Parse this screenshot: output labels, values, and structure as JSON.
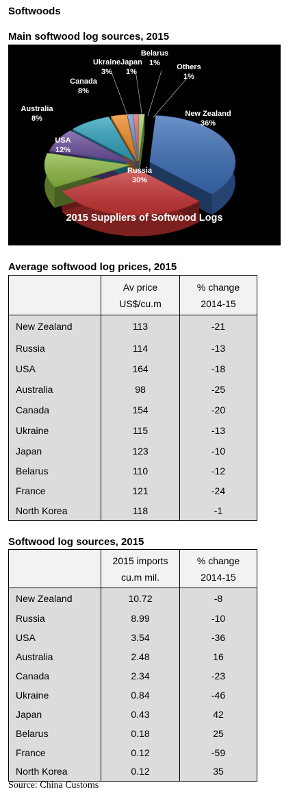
{
  "page_title": "Softwoods",
  "chart_heading": "Main softwood log sources, 2015",
  "chart_data": {
    "type": "pie",
    "title": "2015 Suppliers of Softwood Logs",
    "slices": [
      {
        "label": "New Zealand",
        "value": 36,
        "value_label": "36%",
        "color": "#3b6eb8"
      },
      {
        "label": "Russia",
        "value": 30,
        "value_label": "30%",
        "color": "#c83434"
      },
      {
        "label": "USA",
        "value": 12,
        "value_label": "12%",
        "color": "#8fbc45"
      },
      {
        "label": "Australia",
        "value": 8,
        "value_label": "8%",
        "color": "#6c4f9e"
      },
      {
        "label": "Canada",
        "value": 8,
        "value_label": "8%",
        "color": "#2fa3be"
      },
      {
        "label": "Ukraine",
        "value": 3,
        "value_label": "3%",
        "color": "#f08a24"
      },
      {
        "label": "Japan",
        "value": 1,
        "value_label": "1%",
        "color": "#6f95d6"
      },
      {
        "label": "Belarus",
        "value": 1,
        "value_label": "1%",
        "color": "#d46d6d"
      },
      {
        "label": "Others",
        "value": 1,
        "value_label": "1%",
        "color": "#a6cc6a"
      }
    ]
  },
  "prices_table": {
    "heading": "Average softwood log prices, 2015",
    "col2_line1": "Av price",
    "col2_line2": "US$/cu.m",
    "col3_line1": "% change",
    "col3_line2": "2014-15",
    "rows": [
      {
        "country": "New Zealand",
        "price": "113",
        "change": "-21"
      },
      {
        "country": "Russia",
        "price": "114",
        "change": "-13"
      },
      {
        "country": "USA",
        "price": "164",
        "change": "-18"
      },
      {
        "country": "Australia",
        "price": "98",
        "change": "-25"
      },
      {
        "country": "Canada",
        "price": "154",
        "change": "-20"
      },
      {
        "country": "Ukraine",
        "price": "115",
        "change": "-13"
      },
      {
        "country": "Japan",
        "price": "123",
        "change": "-10"
      },
      {
        "country": "Belarus",
        "price": "110",
        "change": "-12"
      },
      {
        "country": "France",
        "price": "121",
        "change": "-24"
      },
      {
        "country": "North Korea",
        "price": "118",
        "change": "-1"
      }
    ]
  },
  "sources_table": {
    "heading": "Softwood log sources, 2015",
    "col2_line1": "2015 imports",
    "col2_line2": "cu.m mil.",
    "col3_line1": "% change",
    "col3_line2": "2014-15",
    "rows": [
      {
        "country": "New Zealand",
        "imports": "10.72",
        "change": "-8"
      },
      {
        "country": "Russia",
        "imports": "8.99",
        "change": "-10"
      },
      {
        "country": "USA",
        "imports": "3.54",
        "change": "-36"
      },
      {
        "country": "Australia",
        "imports": "2.48",
        "change": "16"
      },
      {
        "country": "Canada",
        "imports": "2.34",
        "change": "-23"
      },
      {
        "country": "Ukraine",
        "imports": "0.84",
        "change": "-46"
      },
      {
        "country": "Japan",
        "imports": "0.43",
        "change": "42"
      },
      {
        "country": "Belarus",
        "imports": "0.18",
        "change": "25"
      },
      {
        "country": "France",
        "imports": "0.12",
        "change": "-59"
      },
      {
        "country": "North Korea",
        "imports": "0.12",
        "change": "35"
      }
    ]
  },
  "source_note": "Source: China Customs"
}
